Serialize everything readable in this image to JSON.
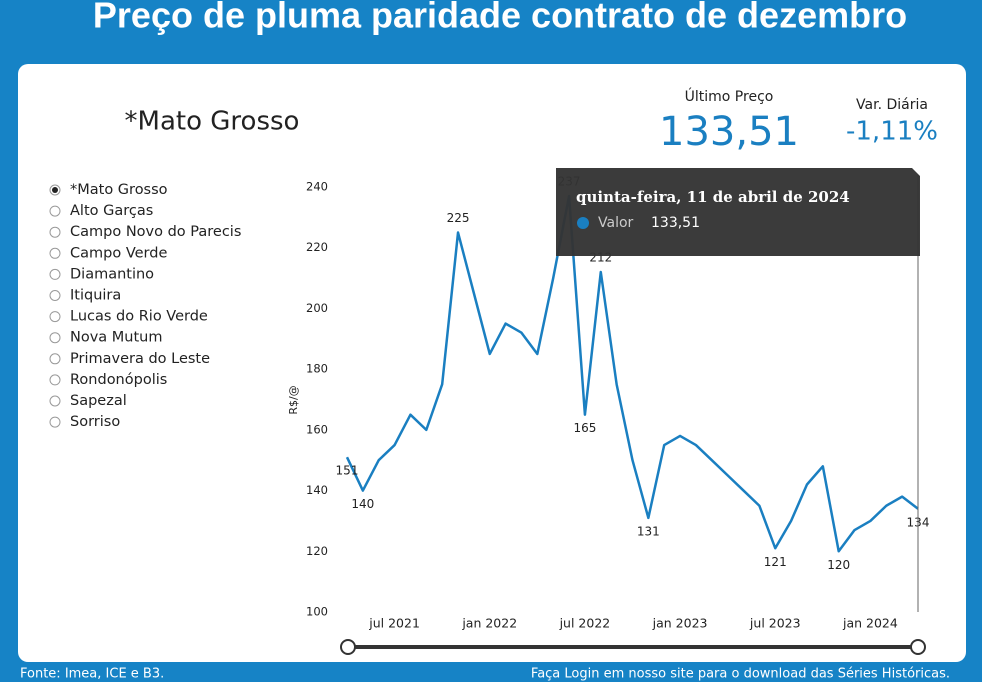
{
  "header": {
    "title": "Preço de pluma paridade contrato de dezembro"
  },
  "region_title": "*Mato Grosso",
  "kpis": {
    "last_label": "Último Preço",
    "last_value": "133,51",
    "var_label": "Var. Diária",
    "var_value": "-1,11%"
  },
  "sidebar": {
    "selected": 0,
    "options": [
      "*Mato Grosso",
      "Alto Garças",
      "Campo Novo do Parecis",
      "Campo Verde",
      "Diamantino",
      "Itiquira",
      "Lucas do Rio Verde",
      "Nova Mutum",
      "Primavera do Leste",
      "Rondonópolis",
      "Sapezal",
      "Sorriso"
    ]
  },
  "tooltip": {
    "date": "quinta-feira, 11 de abril de 2024",
    "label": "Valor",
    "value": "133,51"
  },
  "chart_data": {
    "type": "line",
    "ylabel": "R$/@",
    "color": "#1a7fc1",
    "x": [
      "2021-04",
      "2021-05",
      "2021-06",
      "2021-07",
      "2021-08",
      "2021-09",
      "2021-10",
      "2021-11",
      "2021-12",
      "2022-01",
      "2022-02",
      "2022-03",
      "2022-04",
      "2022-05",
      "2022-06",
      "2022-07",
      "2022-08",
      "2022-09",
      "2022-10",
      "2022-11",
      "2022-12",
      "2023-01",
      "2023-02",
      "2023-03",
      "2023-04",
      "2023-05",
      "2023-06",
      "2023-07",
      "2023-08",
      "2023-09",
      "2023-10",
      "2023-11",
      "2023-12",
      "2024-01",
      "2024-02",
      "2024-03",
      "2024-04"
    ],
    "values": [
      151,
      140,
      150,
      155,
      165,
      160,
      175,
      225,
      205,
      185,
      195,
      192,
      185,
      210,
      237,
      165,
      212,
      175,
      150,
      131,
      155,
      158,
      155,
      150,
      145,
      140,
      135,
      121,
      130,
      142,
      148,
      120,
      127,
      130,
      135,
      138,
      134
    ],
    "value_labels": [
      "151",
      "140",
      null,
      null,
      null,
      null,
      null,
      "225",
      null,
      null,
      null,
      null,
      null,
      null,
      "237",
      "165",
      "212",
      null,
      null,
      "131",
      null,
      null,
      null,
      null,
      null,
      null,
      null,
      "121",
      null,
      null,
      null,
      "120",
      null,
      null,
      null,
      null,
      "134"
    ],
    "xlim": [
      "2021-04",
      "2024-04"
    ],
    "xticks": [
      {
        "value": "2021-07",
        "label": "jul 2021"
      },
      {
        "value": "2022-01",
        "label": "jan 2022"
      },
      {
        "value": "2022-07",
        "label": "jul 2022"
      },
      {
        "value": "2023-01",
        "label": "jan 2023"
      },
      {
        "value": "2023-07",
        "label": "jul 2023"
      },
      {
        "value": "2024-01",
        "label": "jan 2024"
      }
    ],
    "ylim": [
      100,
      240
    ],
    "yticks": [
      100,
      120,
      140,
      160,
      180,
      200,
      220,
      240
    ]
  },
  "footer": {
    "source": "Fonte: Imea, ICE e B3.",
    "download": "Faça Login em nosso site para o download das Séries Históricas."
  }
}
